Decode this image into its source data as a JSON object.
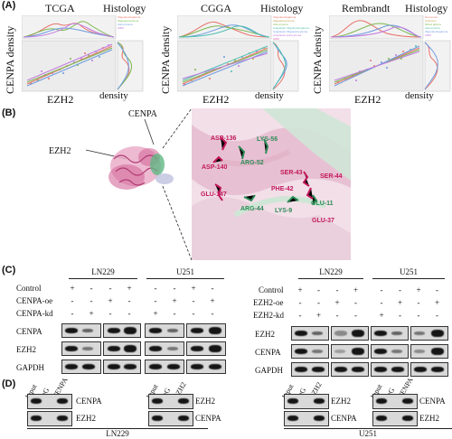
{
  "panel_a": {
    "letter": "(A)",
    "plots": [
      {
        "title": "TCGA",
        "histology": "Histology",
        "ylabel": "CENPA density",
        "xlabel": "EZH2",
        "density": "density",
        "legend": [
          "Oligodendroglioma",
          "Oligoastrocytoma",
          "Astrocytoma",
          "GBM"
        ]
      },
      {
        "title": "CGGA",
        "histology": "Histology",
        "ylabel": "CENPA density",
        "xlabel": "EZH2",
        "density": "density",
        "legend": [
          "Oligodendroglioma",
          "Oligoastrocytoma",
          "Astrocytoma",
          "Anaplastic Oligodendroglioma",
          "Anaplastic Oligoastrocytoma",
          "Anaplastic astrocytoma",
          "GBM"
        ]
      },
      {
        "title": "Rembrandt",
        "histology": "Histology",
        "ylabel": "CENPA density",
        "xlabel": "EZH2",
        "density": "density",
        "legend": [
          "Non-tumor",
          "Unknown",
          "Mixed glioma",
          "Astrocytoma",
          "Oligodendroglioma",
          "GBM"
        ]
      }
    ],
    "colors": {
      "red": "#e8736b",
      "green": "#7cb850",
      "blue": "#6e9be0",
      "purple": "#c27be0",
      "teal": "#4fbfb0",
      "olive": "#b8a44a"
    }
  },
  "panel_b": {
    "letter": "(B)",
    "cenpa": "CENPA",
    "ezh2": "EZH2",
    "residues_pink": [
      "ASP-136",
      "ASP-140",
      "GLU-147",
      "SER-43",
      "PHE-42",
      "SER-44",
      "GLU-37"
    ],
    "residues_green": [
      "LYS-56",
      "ARG-52",
      "ARG-44",
      "LYS-9",
      "GLU-11"
    ]
  },
  "panel_c": {
    "letter": "(C)",
    "left": {
      "cells": [
        "LN229",
        "U251"
      ],
      "conditions": [
        "Control",
        "CENPA-oe",
        "CENPA-kd"
      ],
      "signs": [
        [
          "+",
          "-",
          "+",
          "-",
          "+",
          "-",
          "+",
          "-"
        ],
        [
          "-",
          "+",
          "-",
          "-",
          "-",
          "+",
          "-",
          "-"
        ],
        [
          "-",
          "-",
          "+",
          "-",
          "-",
          "-",
          "-",
          "+"
        ]
      ],
      "signs_display": [
        [
          "+",
          "-",
          "-",
          "+",
          "-",
          "-",
          "+",
          "-"
        ],
        [
          "-",
          "-",
          "+",
          "-",
          "-",
          "+",
          "-",
          "+"
        ],
        [
          "-",
          "+",
          "-",
          "-",
          "+",
          "-",
          "-",
          "-"
        ]
      ],
      "blots": [
        "CENPA",
        "EZH2",
        "GAPDH"
      ]
    },
    "right": {
      "cells": [
        "LN229",
        "U251"
      ],
      "conditions": [
        "Control",
        "EZH2-oe",
        "EZH2-kd"
      ],
      "signs_display": [
        [
          "+",
          "-",
          "-",
          "+",
          "-",
          "-",
          "+",
          "-"
        ],
        [
          "-",
          "-",
          "+",
          "-",
          "-",
          "+",
          "-",
          "+"
        ],
        [
          "-",
          "+",
          "-",
          "-",
          "+",
          "-",
          "-",
          "-"
        ]
      ],
      "blots": [
        "EZH2",
        "CENPA",
        "GAPDH"
      ]
    }
  },
  "panel_d": {
    "letter": "(D)",
    "groups": [
      {
        "heads": [
          "Input",
          "IgG",
          "CENPA"
        ],
        "rows": [
          "CENPA",
          "EZH2"
        ]
      },
      {
        "heads": [
          "Input",
          "IgG",
          "EZH2"
        ],
        "rows": [
          "EZH2",
          "CENPA"
        ]
      },
      {
        "heads": [
          "Input",
          "IgG",
          "EZH2"
        ],
        "rows": [
          "EZH2",
          "CENPA"
        ]
      },
      {
        "heads": [
          "Input",
          "IgG",
          "CENPA"
        ],
        "rows": [
          "CENPA",
          "EZH2"
        ]
      }
    ],
    "cell_lines": [
      "LN229",
      "U251"
    ]
  }
}
